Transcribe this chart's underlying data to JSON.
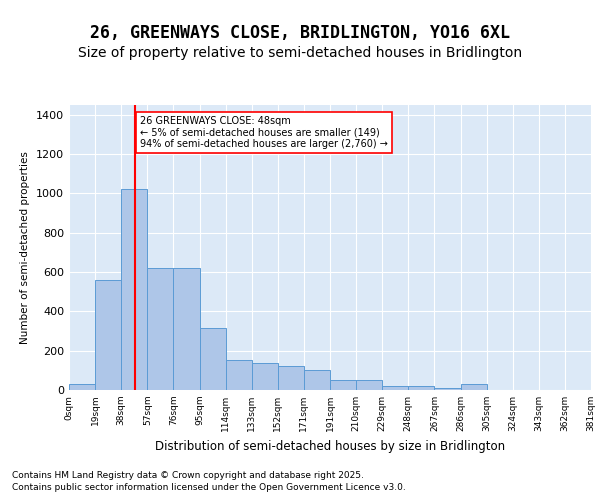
{
  "title": "26, GREENWAYS CLOSE, BRIDLINGTON, YO16 6XL",
  "subtitle": "Size of property relative to semi-detached houses in Bridlington",
  "xlabel": "Distribution of semi-detached houses by size in Bridlington",
  "ylabel": "Number of semi-detached properties",
  "property_label": "26 GREENWAYS CLOSE: 48sqm",
  "annotation_line1": "← 5% of semi-detached houses are smaller (149)",
  "annotation_line2": "94% of semi-detached houses are larger (2,760) →",
  "footer1": "Contains HM Land Registry data © Crown copyright and database right 2025.",
  "footer2": "Contains public sector information licensed under the Open Government Licence v3.0.",
  "bin_labels": [
    "0sqm",
    "19sqm",
    "38sqm",
    "57sqm",
    "76sqm",
    "95sqm",
    "114sqm",
    "133sqm",
    "152sqm",
    "171sqm",
    "191sqm",
    "210sqm",
    "229sqm",
    "248sqm",
    "267sqm",
    "286sqm",
    "305sqm",
    "324sqm",
    "343sqm",
    "362sqm",
    "381sqm"
  ],
  "bar_values": [
    30,
    560,
    1025,
    620,
    620,
    315,
    155,
    135,
    120,
    100,
    50,
    50,
    20,
    20,
    10,
    30,
    0,
    0,
    0,
    0
  ],
  "bar_color": "#aec6e8",
  "bar_edge_color": "#5b9bd5",
  "ylim": [
    0,
    1450
  ],
  "yticks": [
    0,
    200,
    400,
    600,
    800,
    1000,
    1200,
    1400
  ],
  "bg_color": "#dce9f7",
  "title_fontsize": 12,
  "subtitle_fontsize": 10
}
